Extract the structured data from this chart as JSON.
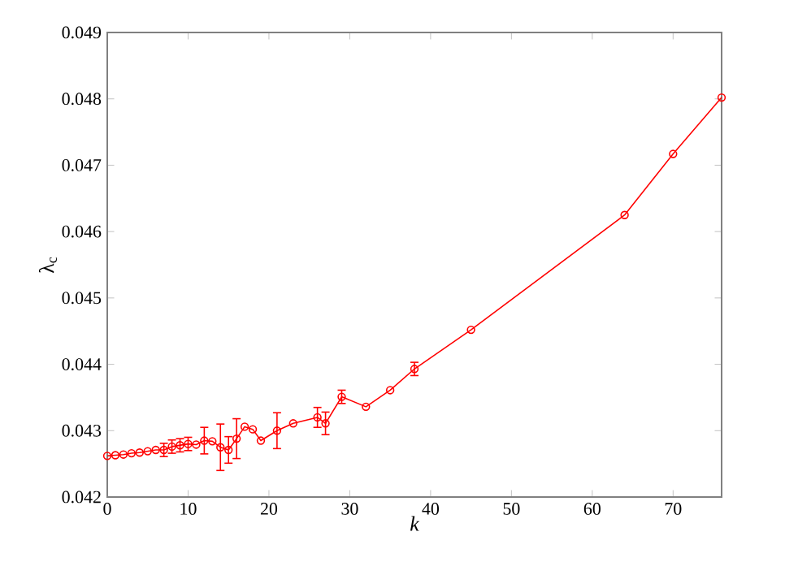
{
  "chart_data": {
    "type": "line",
    "xlabel": "k",
    "ylabel": "λ$_{c}$",
    "x": [
      0,
      1,
      2,
      3,
      4,
      5,
      6,
      7,
      8,
      9,
      10,
      11,
      12,
      13,
      14,
      15,
      16,
      17,
      18,
      19,
      21,
      23,
      26,
      27,
      29,
      32,
      35,
      38,
      45,
      64,
      70,
      76
    ],
    "series": [
      {
        "color": "#ff0000",
        "values": [
          0.04262,
          0.04263,
          0.04264,
          0.04266,
          0.04267,
          0.04269,
          0.04271,
          0.04271,
          0.04276,
          0.04278,
          0.0428,
          0.04279,
          0.04285,
          0.04284,
          0.04275,
          0.04271,
          0.04288,
          0.04306,
          0.04302,
          0.04285,
          0.043,
          0.04311,
          0.0432,
          0.04311,
          0.04351,
          0.04336,
          0.04361,
          0.04393,
          0.04452,
          0.04625,
          0.04717,
          0.04802
        ],
        "errors": [
          null,
          null,
          null,
          null,
          null,
          null,
          null,
          0.0001,
          0.0001,
          0.0001,
          0.0001,
          null,
          0.0002,
          null,
          0.00035,
          0.0002,
          0.0003,
          null,
          null,
          null,
          0.00027,
          null,
          0.00015,
          0.00017,
          0.0001,
          null,
          null,
          0.0001,
          null,
          null,
          null,
          null
        ]
      }
    ],
    "xlim": [
      0,
      76
    ],
    "ylim": [
      0.042,
      0.049
    ],
    "xticks": [
      0,
      10,
      20,
      30,
      40,
      50,
      60,
      70
    ],
    "yticks": [
      {
        "value": 0.042,
        "label": "0.042"
      },
      {
        "value": 0.043,
        "label": "0.043"
      },
      {
        "value": 0.044,
        "label": "0.044"
      },
      {
        "value": 0.045,
        "label": "0.045"
      },
      {
        "value": 0.046,
        "label": "0.046"
      },
      {
        "value": 0.047,
        "label": "0.047"
      },
      {
        "value": 0.048,
        "label": "0.048"
      },
      {
        "value": 0.049,
        "label": "0.049"
      }
    ],
    "marker": "circle",
    "line_style": "solid",
    "grid": false
  }
}
